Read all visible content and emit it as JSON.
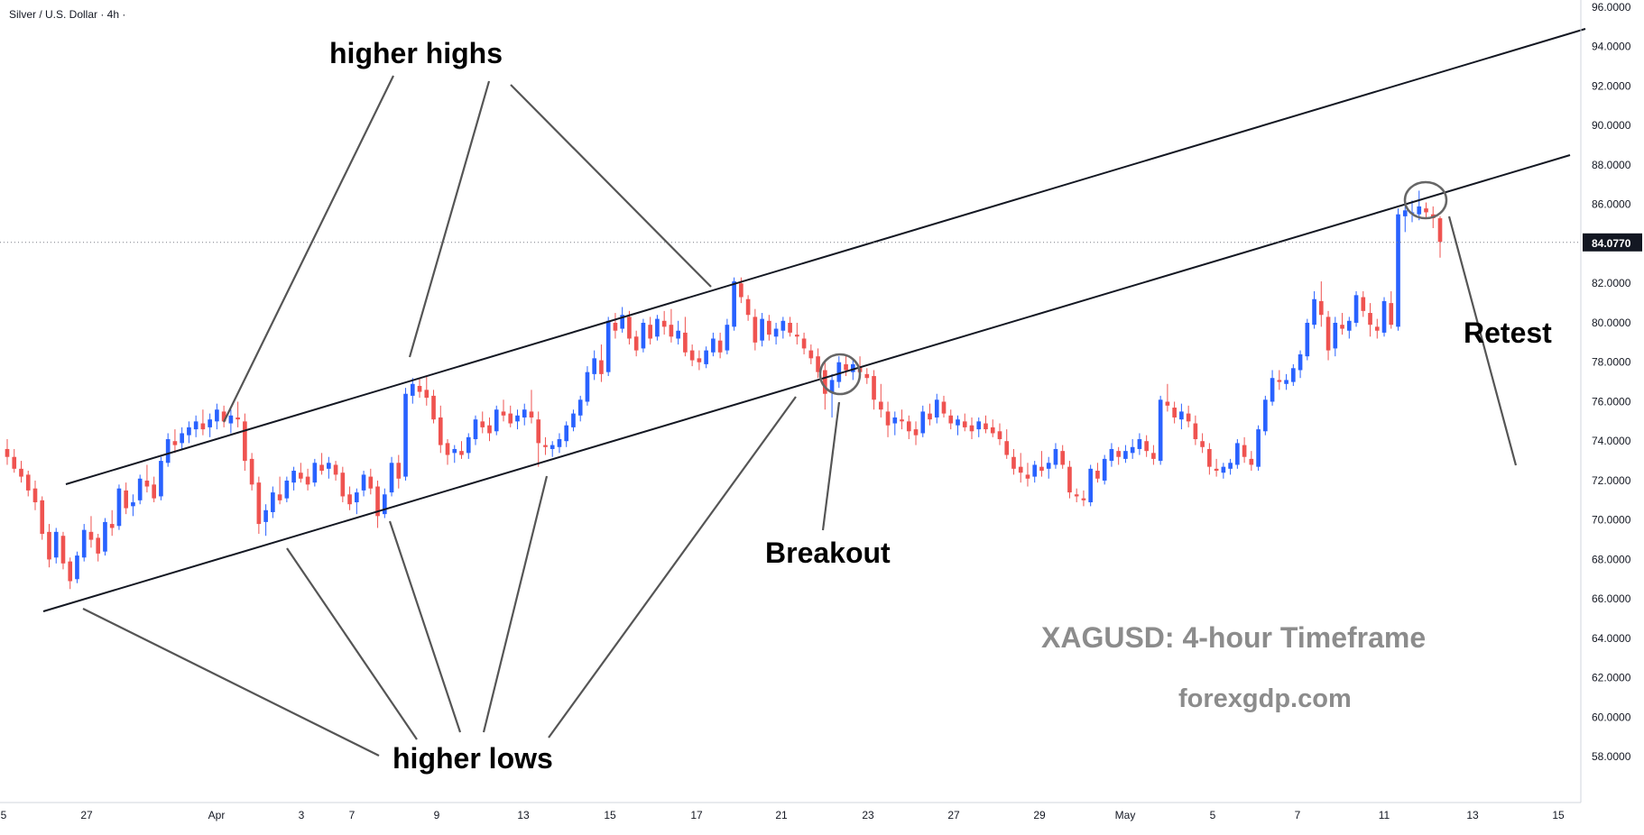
{
  "header": {
    "symbol_title": "Silver / U.S. Dollar · 4h ·"
  },
  "colors": {
    "up": "#2962ff",
    "down": "#ef5350",
    "line": "#131722",
    "arrow": "#555555",
    "price_label_bg": "#131722",
    "watermark": "#8c8c8c"
  },
  "chart_data": {
    "type": "candlestick",
    "title": "Silver / U.S. Dollar · 4h ·",
    "ylim": [
      56.5,
      96.0
    ],
    "y_ticks": [
      "58.0000",
      "60.0000",
      "62.0000",
      "64.0000",
      "66.0000",
      "68.0000",
      "70.0000",
      "72.0000",
      "74.0000",
      "76.0000",
      "78.0000",
      "80.0000",
      "82.0000",
      "84.0000",
      "86.0000",
      "88.0000",
      "90.0000",
      "92.0000",
      "94.0000",
      "96.0000"
    ],
    "x_tick_labels": [
      "5",
      "27",
      "Apr",
      "3",
      "7",
      "9",
      "13",
      "15",
      "17",
      "21",
      "23",
      "27",
      "29",
      "May",
      "5",
      "7",
      "11",
      "13",
      "15"
    ],
    "last_price": "84.0770",
    "ohlc": [
      [
        73.6,
        74.1,
        72.8,
        73.2
      ],
      [
        73.2,
        73.6,
        72.4,
        72.6
      ],
      [
        72.6,
        73.0,
        71.9,
        72.2
      ],
      [
        72.3,
        72.5,
        71.2,
        71.5
      ],
      [
        71.6,
        72.0,
        70.5,
        70.9
      ],
      [
        71.0,
        71.2,
        69.0,
        69.3
      ],
      [
        69.4,
        69.8,
        67.6,
        68.0
      ],
      [
        68.1,
        69.6,
        67.8,
        69.4
      ],
      [
        69.2,
        69.4,
        67.5,
        67.8
      ],
      [
        67.9,
        68.1,
        66.5,
        66.9
      ],
      [
        67.0,
        68.4,
        66.8,
        68.2
      ],
      [
        68.1,
        69.8,
        67.9,
        69.5
      ],
      [
        69.4,
        70.2,
        68.6,
        69.0
      ],
      [
        69.1,
        69.3,
        67.9,
        68.3
      ],
      [
        68.4,
        70.1,
        68.2,
        69.9
      ],
      [
        69.8,
        70.5,
        69.2,
        69.6
      ],
      [
        69.7,
        71.8,
        69.5,
        71.6
      ],
      [
        71.5,
        71.9,
        70.3,
        70.6
      ],
      [
        70.7,
        71.3,
        70.2,
        70.9
      ],
      [
        71.0,
        72.3,
        70.8,
        72.1
      ],
      [
        72.0,
        72.8,
        71.4,
        71.7
      ],
      [
        71.8,
        72.2,
        70.9,
        71.1
      ],
      [
        71.2,
        73.2,
        71.0,
        73.0
      ],
      [
        72.9,
        74.4,
        72.7,
        74.1
      ],
      [
        74.0,
        74.6,
        73.4,
        73.8
      ],
      [
        73.9,
        74.7,
        73.6,
        74.4
      ],
      [
        74.3,
        75.0,
        73.9,
        74.7
      ],
      [
        74.6,
        75.3,
        74.2,
        75.0
      ],
      [
        74.9,
        75.6,
        74.3,
        74.6
      ],
      [
        74.7,
        75.4,
        74.2,
        75.1
      ],
      [
        75.0,
        75.9,
        74.6,
        75.6
      ],
      [
        75.5,
        75.8,
        74.7,
        75.0
      ],
      [
        74.9,
        75.6,
        74.4,
        75.3
      ],
      [
        75.2,
        76.0,
        74.7,
        75.1
      ],
      [
        75.0,
        75.4,
        72.5,
        73.0
      ],
      [
        73.1,
        73.4,
        71.5,
        71.8
      ],
      [
        71.9,
        72.2,
        69.3,
        69.8
      ],
      [
        69.9,
        70.8,
        69.2,
        70.5
      ],
      [
        70.4,
        71.7,
        70.1,
        71.4
      ],
      [
        71.3,
        72.2,
        70.8,
        71.0
      ],
      [
        71.1,
        72.2,
        70.9,
        72.0
      ],
      [
        71.9,
        72.7,
        71.5,
        72.5
      ],
      [
        72.4,
        72.9,
        71.9,
        72.1
      ],
      [
        72.2,
        72.6,
        71.5,
        71.8
      ],
      [
        71.9,
        73.1,
        71.7,
        72.9
      ],
      [
        72.8,
        73.4,
        72.3,
        72.5
      ],
      [
        72.6,
        73.2,
        72.1,
        72.9
      ],
      [
        72.8,
        73.0,
        72.0,
        72.3
      ],
      [
        72.4,
        72.7,
        70.9,
        71.2
      ],
      [
        71.3,
        71.7,
        70.5,
        70.8
      ],
      [
        70.9,
        71.6,
        70.3,
        71.4
      ],
      [
        71.5,
        72.5,
        71.2,
        72.3
      ],
      [
        72.2,
        72.6,
        71.3,
        71.6
      ],
      [
        71.7,
        72.0,
        69.6,
        70.2
      ],
      [
        70.3,
        71.6,
        70.1,
        71.3
      ],
      [
        71.4,
        73.2,
        71.2,
        72.9
      ],
      [
        72.9,
        73.3,
        71.6,
        72.1
      ],
      [
        72.2,
        76.7,
        72.0,
        76.4
      ],
      [
        76.3,
        77.2,
        75.9,
        76.9
      ],
      [
        76.8,
        77.2,
        76.2,
        76.5
      ],
      [
        76.6,
        77.3,
        75.8,
        76.2
      ],
      [
        76.3,
        76.6,
        74.9,
        75.1
      ],
      [
        75.2,
        75.8,
        73.4,
        73.8
      ],
      [
        73.9,
        74.1,
        72.8,
        73.3
      ],
      [
        73.4,
        73.8,
        72.9,
        73.6
      ],
      [
        73.5,
        74.0,
        73.1,
        73.3
      ],
      [
        73.4,
        74.4,
        73.1,
        74.2
      ],
      [
        74.1,
        75.3,
        73.8,
        75.1
      ],
      [
        75.0,
        75.5,
        74.4,
        74.7
      ],
      [
        74.8,
        75.2,
        74.0,
        74.4
      ],
      [
        74.5,
        75.8,
        74.3,
        75.6
      ],
      [
        75.5,
        76.1,
        75.0,
        75.3
      ],
      [
        75.4,
        75.8,
        74.7,
        74.9
      ],
      [
        75.0,
        75.6,
        74.6,
        75.3
      ],
      [
        75.2,
        75.9,
        74.8,
        75.6
      ],
      [
        75.5,
        76.6,
        74.9,
        75.2
      ],
      [
        75.1,
        75.5,
        72.7,
        73.9
      ],
      [
        73.8,
        74.2,
        73.3,
        73.7
      ],
      [
        73.6,
        74.0,
        73.2,
        73.8
      ],
      [
        73.7,
        74.4,
        73.4,
        74.1
      ],
      [
        74.0,
        75.0,
        73.7,
        74.8
      ],
      [
        74.7,
        75.6,
        74.5,
        75.4
      ],
      [
        75.3,
        76.3,
        75.0,
        76.1
      ],
      [
        76.0,
        77.8,
        75.8,
        77.5
      ],
      [
        77.4,
        78.6,
        77.1,
        78.2
      ],
      [
        78.1,
        78.9,
        77.0,
        77.4
      ],
      [
        77.5,
        80.3,
        77.3,
        80.1
      ],
      [
        80.0,
        80.5,
        79.2,
        79.6
      ],
      [
        79.7,
        80.8,
        79.5,
        80.4
      ],
      [
        80.3,
        80.6,
        78.9,
        79.2
      ],
      [
        79.3,
        79.6,
        78.3,
        78.6
      ],
      [
        78.7,
        80.2,
        78.5,
        80.0
      ],
      [
        79.9,
        80.3,
        78.9,
        79.2
      ],
      [
        79.3,
        80.4,
        79.1,
        80.2
      ],
      [
        80.1,
        80.6,
        79.4,
        79.8
      ],
      [
        79.9,
        80.7,
        79.0,
        79.3
      ],
      [
        79.2,
        80.1,
        78.9,
        79.6
      ],
      [
        79.5,
        80.3,
        78.3,
        78.5
      ],
      [
        78.6,
        78.9,
        77.8,
        78.1
      ],
      [
        78.2,
        78.6,
        77.6,
        78.0
      ],
      [
        77.9,
        78.8,
        77.7,
        78.6
      ],
      [
        78.5,
        79.5,
        78.3,
        79.2
      ],
      [
        79.1,
        79.5,
        78.2,
        78.5
      ],
      [
        78.6,
        80.2,
        78.4,
        79.9
      ],
      [
        79.8,
        82.3,
        79.6,
        82.1
      ],
      [
        82.0,
        82.3,
        81.0,
        81.3
      ],
      [
        81.2,
        81.4,
        80.1,
        80.4
      ],
      [
        80.3,
        80.7,
        78.6,
        79.0
      ],
      [
        79.1,
        80.5,
        78.8,
        80.2
      ],
      [
        80.1,
        80.4,
        79.1,
        79.4
      ],
      [
        79.3,
        80.0,
        78.9,
        79.7
      ],
      [
        79.6,
        80.3,
        79.2,
        80.1
      ],
      [
        80.0,
        80.3,
        79.3,
        79.5
      ],
      [
        79.4,
        80.0,
        78.9,
        79.3
      ],
      [
        79.2,
        79.5,
        78.4,
        78.7
      ],
      [
        78.6,
        78.9,
        77.9,
        78.2
      ],
      [
        78.3,
        78.7,
        77.2,
        77.5
      ],
      [
        77.6,
        78.0,
        75.6,
        76.4
      ],
      [
        76.5,
        77.4,
        75.2,
        77.1
      ],
      [
        77.0,
        78.3,
        76.7,
        78.0
      ],
      [
        77.9,
        78.4,
        77.3,
        77.6
      ],
      [
        77.5,
        78.2,
        77.1,
        77.9
      ],
      [
        77.8,
        78.3,
        77.3,
        77.5
      ],
      [
        77.4,
        77.7,
        76.9,
        77.2
      ],
      [
        77.3,
        77.6,
        75.6,
        76.1
      ],
      [
        76.0,
        76.9,
        75.2,
        75.6
      ],
      [
        75.5,
        76.0,
        74.2,
        74.8
      ],
      [
        74.9,
        75.5,
        74.3,
        75.2
      ],
      [
        75.1,
        75.6,
        74.6,
        75.0
      ],
      [
        75.0,
        75.3,
        74.1,
        74.5
      ],
      [
        74.6,
        75.0,
        73.8,
        74.3
      ],
      [
        74.4,
        75.8,
        74.2,
        75.5
      ],
      [
        75.4,
        75.9,
        74.8,
        75.1
      ],
      [
        75.2,
        76.4,
        74.9,
        76.1
      ],
      [
        76.0,
        76.3,
        75.2,
        75.4
      ],
      [
        75.3,
        75.6,
        74.6,
        74.9
      ],
      [
        74.8,
        75.3,
        74.3,
        75.1
      ],
      [
        75.0,
        75.4,
        74.5,
        74.7
      ],
      [
        74.8,
        75.2,
        74.1,
        74.5
      ],
      [
        74.6,
        75.2,
        74.2,
        75.0
      ],
      [
        74.9,
        75.3,
        74.4,
        74.6
      ],
      [
        74.7,
        75.1,
        74.2,
        74.4
      ],
      [
        74.5,
        74.9,
        73.8,
        74.1
      ],
      [
        74.0,
        74.6,
        73.1,
        73.3
      ],
      [
        73.2,
        73.6,
        72.3,
        72.6
      ],
      [
        72.7,
        73.4,
        71.9,
        72.4
      ],
      [
        72.3,
        72.9,
        71.7,
        72.1
      ],
      [
        72.2,
        73.0,
        71.9,
        72.8
      ],
      [
        72.7,
        73.5,
        72.2,
        72.5
      ],
      [
        72.6,
        73.2,
        72.1,
        72.9
      ],
      [
        72.8,
        73.9,
        72.6,
        73.6
      ],
      [
        73.5,
        73.8,
        72.6,
        72.8
      ],
      [
        72.7,
        73.0,
        71.1,
        71.4
      ],
      [
        71.3,
        71.6,
        70.9,
        71.2
      ],
      [
        71.1,
        71.5,
        70.7,
        71.0
      ],
      [
        70.9,
        72.8,
        70.7,
        72.6
      ],
      [
        72.5,
        72.9,
        71.9,
        72.1
      ],
      [
        72.0,
        73.3,
        71.8,
        73.1
      ],
      [
        73.0,
        73.9,
        72.7,
        73.6
      ],
      [
        73.5,
        73.7,
        72.8,
        73.2
      ],
      [
        73.1,
        73.8,
        72.9,
        73.5
      ],
      [
        73.4,
        74.1,
        73.1,
        73.7
      ],
      [
        73.6,
        74.4,
        73.3,
        74.1
      ],
      [
        74.0,
        74.3,
        73.2,
        73.5
      ],
      [
        73.4,
        73.8,
        72.8,
        73.1
      ],
      [
        73.0,
        76.3,
        72.8,
        76.1
      ],
      [
        76.0,
        76.9,
        75.5,
        75.8
      ],
      [
        75.7,
        76.0,
        74.9,
        75.2
      ],
      [
        75.1,
        75.9,
        74.6,
        75.5
      ],
      [
        75.4,
        75.8,
        74.7,
        75.0
      ],
      [
        74.9,
        75.3,
        73.8,
        74.1
      ],
      [
        74.0,
        74.4,
        73.4,
        73.7
      ],
      [
        73.6,
        73.9,
        72.3,
        72.7
      ],
      [
        72.6,
        73.1,
        72.2,
        72.5
      ],
      [
        72.4,
        72.9,
        72.1,
        72.7
      ],
      [
        72.6,
        73.1,
        72.3,
        72.9
      ],
      [
        72.8,
        74.1,
        72.6,
        73.9
      ],
      [
        73.8,
        74.2,
        72.9,
        73.2
      ],
      [
        73.1,
        73.5,
        72.5,
        72.8
      ],
      [
        72.7,
        74.8,
        72.5,
        74.6
      ],
      [
        74.5,
        76.3,
        74.3,
        76.1
      ],
      [
        76.0,
        77.6,
        75.8,
        77.2
      ],
      [
        77.1,
        77.6,
        76.6,
        77.0
      ],
      [
        76.9,
        77.4,
        76.6,
        77.1
      ],
      [
        77.0,
        77.9,
        76.8,
        77.7
      ],
      [
        77.6,
        78.6,
        77.2,
        78.4
      ],
      [
        78.3,
        80.2,
        78.1,
        80.0
      ],
      [
        79.9,
        81.6,
        79.7,
        81.2
      ],
      [
        81.1,
        82.1,
        79.8,
        80.4
      ],
      [
        80.3,
        80.6,
        78.1,
        78.6
      ],
      [
        78.7,
        80.3,
        78.3,
        80.0
      ],
      [
        79.9,
        80.5,
        79.4,
        79.7
      ],
      [
        79.6,
        80.3,
        79.2,
        80.1
      ],
      [
        80.0,
        81.6,
        79.8,
        81.4
      ],
      [
        81.3,
        81.6,
        80.3,
        80.6
      ],
      [
        80.5,
        81.0,
        79.3,
        79.9
      ],
      [
        79.8,
        80.2,
        79.2,
        79.6
      ],
      [
        79.5,
        81.3,
        79.3,
        81.1
      ],
      [
        81.0,
        81.6,
        79.7,
        79.9
      ],
      [
        79.8,
        85.8,
        79.6,
        85.5
      ],
      [
        85.4,
        86.1,
        84.6,
        85.7
      ],
      [
        85.6,
        86.2,
        85.1,
        85.6
      ],
      [
        85.5,
        86.7,
        85.2,
        85.9
      ],
      [
        85.8,
        86.1,
        85.3,
        85.6
      ],
      [
        85.5,
        85.9,
        84.8,
        85.3
      ],
      [
        85.3,
        85.4,
        83.3,
        84.1
      ]
    ],
    "trendlines": [
      {
        "name": "upper-channel",
        "points": [
          [
            "2025-03-27",
            72.5
          ],
          [
            "2025-05-15",
            94.7
          ]
        ]
      },
      {
        "name": "lower-channel",
        "points": [
          [
            "2025-03-26",
            66.3
          ],
          [
            "2025-05-15",
            88.7
          ]
        ]
      }
    ]
  },
  "annotations": {
    "higher_highs": "higher highs",
    "higher_lows": "higher lows",
    "breakout": "Breakout",
    "retest": "Retest",
    "watermark_title": "XAGUSD: 4-hour Timeframe",
    "watermark_site": "forexgdp.com"
  }
}
